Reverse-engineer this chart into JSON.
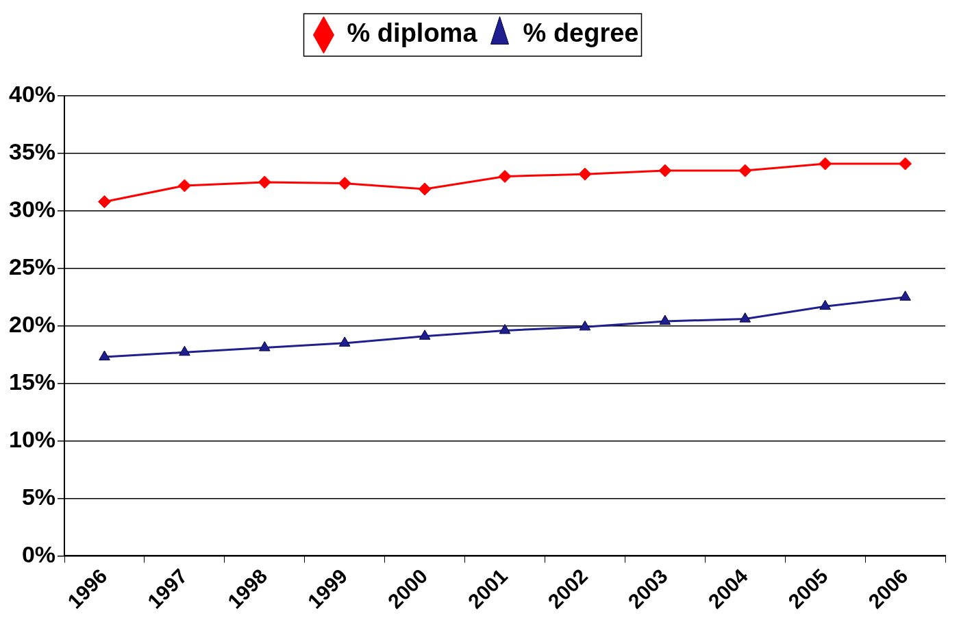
{
  "chart_data": {
    "type": "line",
    "categories": [
      "1996",
      "1997",
      "1998",
      "1999",
      "2000",
      "2001",
      "2002",
      "2003",
      "2004",
      "2005",
      "2006"
    ],
    "series": [
      {
        "name": "% diploma",
        "color": "#ff0000",
        "marker": "diamond",
        "values": [
          30.8,
          32.2,
          32.5,
          32.4,
          31.9,
          33.0,
          33.2,
          33.5,
          33.5,
          34.1,
          34.1
        ]
      },
      {
        "name": "% degree",
        "color": "#1f1f8f",
        "marker": "triangle",
        "values": [
          17.3,
          17.7,
          18.1,
          18.5,
          19.1,
          19.6,
          19.9,
          20.4,
          20.6,
          21.7,
          22.5
        ]
      }
    ],
    "ylim": [
      0,
      40
    ],
    "yticks": [
      {
        "value": 0,
        "label": "0%"
      },
      {
        "value": 5,
        "label": "5%"
      },
      {
        "value": 10,
        "label": "10%"
      },
      {
        "value": 15,
        "label": "15%"
      },
      {
        "value": 20,
        "label": "20%"
      },
      {
        "value": 25,
        "label": "25%"
      },
      {
        "value": 30,
        "label": "30%"
      },
      {
        "value": 35,
        "label": "35%"
      },
      {
        "value": 40,
        "label": "40%"
      }
    ],
    "grid": "y",
    "legend": "top",
    "line_style": "solid"
  }
}
